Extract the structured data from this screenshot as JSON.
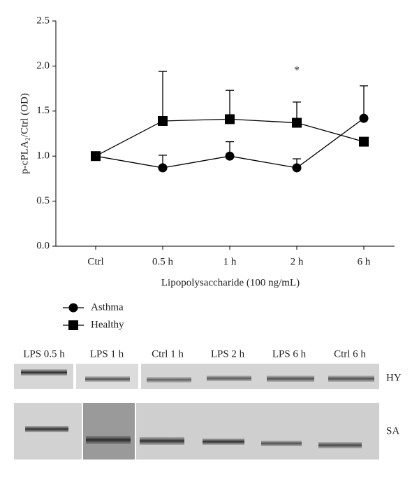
{
  "chart_data": {
    "type": "line",
    "y_label": "p-cPLA₂/Ctrl (OD)",
    "x_label": "Lipopolysaccharide (100 ng/mL)",
    "categories": [
      "Ctrl",
      "0.5 h",
      "1 h",
      "2 h",
      "6 h"
    ],
    "series": [
      {
        "name": "Asthma",
        "color": "#000000",
        "marker": "circle",
        "values": [
          1.0,
          0.87,
          1.0,
          0.87,
          1.42
        ],
        "errors": [
          null,
          0.14,
          0.16,
          0.1,
          0.36
        ]
      },
      {
        "name": "Healthy",
        "color": "#000000",
        "marker": "square",
        "values": [
          1.0,
          1.39,
          1.41,
          1.37,
          1.16
        ],
        "errors": [
          null,
          0.55,
          0.32,
          0.23,
          null
        ]
      }
    ],
    "ylim": [
      0,
      2.5
    ],
    "yticks": [
      {
        "value": 0,
        "label": "0.0"
      },
      0.5,
      {
        "value": 1,
        "label": "1.0"
      },
      1.5,
      {
        "value": 2,
        "label": "2.0"
      },
      2.5
    ],
    "annotations": [
      {
        "text": "*",
        "category": 3,
        "y": 1.95
      }
    ],
    "legend": "bottom-left"
  },
  "blot": {
    "lanes": [
      "LPS 0.5 h",
      "LPS 1 h",
      "Ctrl 1 h",
      "LPS 2 h",
      "LPS 6 h",
      "Ctrl 6 h"
    ],
    "rows": [
      "HY",
      "SA"
    ]
  }
}
